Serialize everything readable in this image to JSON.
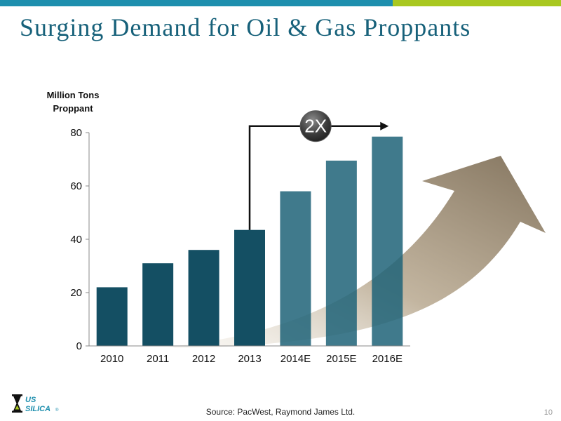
{
  "slide": {
    "title": "Surging Demand for Oil & Gas Proppants",
    "source": "Source: PacWest, Raymond James Ltd.",
    "page_number": "10",
    "logo_text": [
      "US",
      "SILICA"
    ],
    "logo_mark": "®"
  },
  "colors": {
    "bar_actual": "#144f63",
    "bar_estimate": "#1f6378",
    "accent_blue": "#1e8fae",
    "accent_green": "#a9c820",
    "title": "#17617a"
  },
  "chart_data": {
    "type": "bar",
    "categories": [
      "2010",
      "2011",
      "2012",
      "2013",
      "2014E",
      "2015E",
      "2016E"
    ],
    "values": [
      22,
      31,
      36,
      43.5,
      58,
      69.5,
      78.5
    ],
    "ylabel": "Million Tons Proppant",
    "ylabel_lines": [
      "Million Tons",
      "Proppant"
    ],
    "ylim": [
      0,
      80
    ],
    "yticks": [
      0,
      20,
      40,
      60,
      80
    ],
    "grid": false,
    "annotation": {
      "label": "2X",
      "from_category": "2013",
      "to_category": "2016E"
    }
  }
}
